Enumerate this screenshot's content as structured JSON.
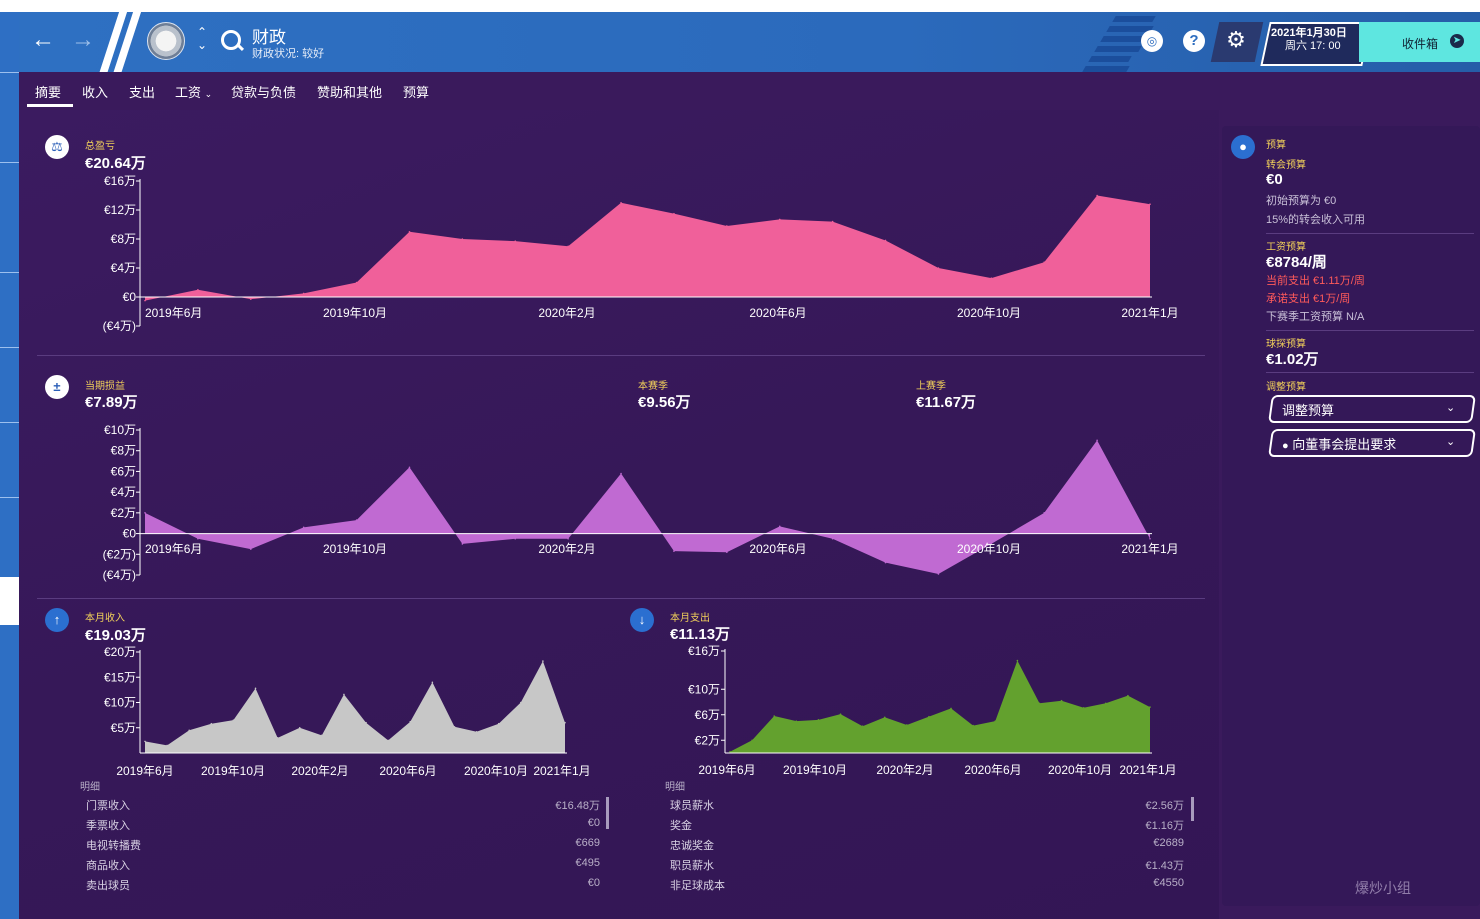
{
  "header": {
    "title": "财政",
    "subtitle": "财政状况: 较好",
    "date_line1": "2021年1月30日",
    "date_line2": "周六 17: 00",
    "inbox_label": "收件箱"
  },
  "tabs": [
    "摘要",
    "收入",
    "支出",
    "工资",
    "贷款与负债",
    "赞助和其他",
    "预算"
  ],
  "colors": {
    "accent_pink": "#f0609a",
    "accent_violet": "#c06ad2",
    "accent_grey": "#c7c7c7",
    "accent_green": "#63a12e",
    "label_yellow": "#f2d15a",
    "red": "#ff5a5a"
  },
  "summary": {
    "total_label": "总盈亏",
    "total_value": "€20.64万",
    "period_label": "当期损益",
    "period_value": "€7.89万",
    "this_season_label": "本赛季",
    "this_season_value": "€9.56万",
    "last_season_label": "上赛季",
    "last_season_value": "€11.67万",
    "income_label": "本月收入",
    "income_value": "€19.03万",
    "expense_label": "本月支出",
    "expense_value": "€11.13万"
  },
  "chart_data": [
    {
      "type": "area",
      "title": "总盈亏",
      "x_ticks": [
        "2019年6月",
        "2019年10月",
        "2020年2月",
        "2020年6月",
        "2020年10月",
        "2021年1月"
      ],
      "y_ticks": [
        "€16万",
        "€12万",
        "€8万",
        "€4万",
        "€0",
        "(€4万)"
      ],
      "ylim": [
        -4,
        16
      ],
      "values": [
        -0.5,
        1.0,
        -0.3,
        0.5,
        2.0,
        9.0,
        8.0,
        7.7,
        7.0,
        13.0,
        11.5,
        9.8,
        10.7,
        10.4,
        7.8,
        4.0,
        2.6,
        4.8,
        14.0,
        12.8
      ],
      "series": [
        {
          "name": "总盈亏",
          "color": "#f0609a"
        }
      ]
    },
    {
      "type": "area",
      "title": "当期损益",
      "x_ticks": [
        "2019年6月",
        "2019年10月",
        "2020年2月",
        "2020年6月",
        "2020年10月",
        "2021年1月"
      ],
      "y_ticks": [
        "€10万",
        "€8万",
        "€6万",
        "€4万",
        "€2万",
        "€0",
        "(€2万)",
        "(€4万)"
      ],
      "ylim": [
        -4,
        10
      ],
      "values": [
        2.0,
        -0.5,
        -1.5,
        0.6,
        1.3,
        6.4,
        -1.0,
        -0.5,
        -0.5,
        5.8,
        -1.7,
        -1.8,
        0.7,
        -0.5,
        -2.8,
        -3.9,
        -1.0,
        2.0,
        9.0,
        -0.5
      ],
      "series": [
        {
          "name": "当期损益",
          "color": "#c06ad2"
        }
      ]
    },
    {
      "type": "area",
      "title": "本月收入",
      "x_ticks": [
        "2019年6月",
        "2019年10月",
        "2020年2月",
        "2020年6月",
        "2020年10月",
        "2021年1月"
      ],
      "y_ticks": [
        "€20万",
        "€15万",
        "€10万",
        "€5万"
      ],
      "ylim": [
        0,
        20
      ],
      "values": [
        2.3,
        1.5,
        4.5,
        5.8,
        6.5,
        12.8,
        3.0,
        5.0,
        3.5,
        11.6,
        6.0,
        2.5,
        6.2,
        14.0,
        5.2,
        4.2,
        5.8,
        10.0,
        18.2,
        6.0
      ],
      "series": [
        {
          "name": "本月收入",
          "color": "#c7c7c7"
        }
      ]
    },
    {
      "type": "area",
      "title": "本月支出",
      "x_ticks": [
        "2019年6月",
        "2019年10月",
        "2020年2月",
        "2020年6月",
        "2020年10月",
        "2021年1月"
      ],
      "y_ticks": [
        "€16万",
        "€10万",
        "€6万",
        "€2万"
      ],
      "ylim": [
        0,
        16
      ],
      "values": [
        0.2,
        2.0,
        5.8,
        5.0,
        5.2,
        6.1,
        4.2,
        5.6,
        4.4,
        5.7,
        7.0,
        4.3,
        5.0,
        14.5,
        7.8,
        8.2,
        7.1,
        7.8,
        9.0,
        7.2
      ],
      "series": [
        {
          "name": "本月支出",
          "color": "#63a12e"
        }
      ]
    }
  ],
  "income_details": {
    "head": "明细",
    "rows": [
      {
        "label": "门票收入",
        "value": "€16.48万"
      },
      {
        "label": "季票收入",
        "value": "€0"
      },
      {
        "label": "电视转播费",
        "value": "€669"
      },
      {
        "label": "商品收入",
        "value": "€495"
      },
      {
        "label": "卖出球员",
        "value": "€0"
      }
    ]
  },
  "expense_details": {
    "head": "明细",
    "rows": [
      {
        "label": "球员薪水",
        "value": "€2.56万"
      },
      {
        "label": "奖金",
        "value": "€1.16万"
      },
      {
        "label": "忠诚奖金",
        "value": "€2689"
      },
      {
        "label": "职员薪水",
        "value": "€1.43万"
      },
      {
        "label": "非足球成本",
        "value": "€4550"
      }
    ]
  },
  "budget": {
    "title": "预算",
    "transfer_label": "转会预算",
    "transfer_value": "€0",
    "transfer_note1": "初始预算为 €0",
    "transfer_note2": "15%的转会收入可用",
    "wage_label": "工资预算",
    "wage_value": "€8784/周",
    "wage_current": "当前支出 €1.11万/周",
    "wage_committed": "承诺支出 €1万/周",
    "wage_next": "下赛季工资预算 N/A",
    "scout_label": "球探预算",
    "scout_value": "€1.02万",
    "adjust_label": "调整预算",
    "adjust_dropdown": "调整预算",
    "board_dropdown": "向董事会提出要求"
  },
  "watermark": "爆炒小组"
}
